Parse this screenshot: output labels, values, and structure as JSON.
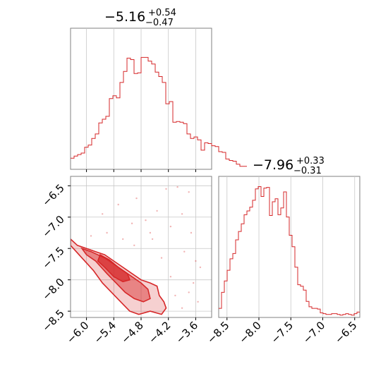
{
  "chart_data": {
    "type": "corner",
    "color": "#d62728",
    "parameters": [
      {
        "title": {
          "median": "−5.16",
          "plus": "+0.54",
          "minus": "−0.47"
        },
        "range": [
          -6.35,
          -3.25
        ],
        "ticks": [
          {
            "v": -6.0,
            "label": "−6.0"
          },
          {
            "v": -5.4,
            "label": "−5.4"
          },
          {
            "v": -4.8,
            "label": "−4.8"
          },
          {
            "v": -4.2,
            "label": "−4.2"
          },
          {
            "v": -3.6,
            "label": "−3.6"
          }
        ]
      },
      {
        "title": {
          "median": "−7.96",
          "plus": "+0.33",
          "minus": "−0.31"
        },
        "range": [
          -8.63,
          -6.42
        ],
        "ticks": [
          {
            "v": -8.5,
            "label": "−8.5"
          },
          {
            "v": -8.0,
            "label": "−8.0"
          },
          {
            "v": -7.5,
            "label": "−7.5"
          },
          {
            "v": -7.0,
            "label": "−7.0"
          },
          {
            "v": -6.5,
            "label": "−6.5"
          }
        ]
      }
    ],
    "histogram_1": {
      "x_start": -6.35,
      "bin_width": 0.0775,
      "ymax": 184,
      "counts": [
        15,
        18,
        20,
        22,
        30,
        33,
        42,
        48,
        63,
        68,
        72,
        96,
        100,
        97,
        118,
        133,
        151,
        149,
        130,
        131,
        152,
        152,
        147,
        143,
        132,
        126,
        118,
        89,
        92,
        64,
        65,
        64,
        62,
        48,
        42,
        44,
        40,
        26,
        36,
        35,
        32,
        31,
        24,
        23,
        14,
        12,
        11,
        7,
        4,
        4
      ]
    },
    "histogram_2": {
      "x_start": -8.63,
      "bin_width": 0.0442,
      "ymax": 178,
      "counts": [
        12,
        33,
        48,
        62,
        77,
        84,
        102,
        113,
        123,
        135,
        140,
        145,
        154,
        169,
        172,
        159,
        170,
        171,
        134,
        152,
        156,
        135,
        144,
        165,
        132,
        108,
        93,
        66,
        43,
        41,
        36,
        21,
        14,
        12,
        12,
        11,
        6,
        5,
        4,
        4,
        5,
        5,
        4,
        3,
        4,
        5,
        4,
        3,
        5,
        7
      ]
    },
    "density_2d": {
      "ylim": [
        -8.6,
        -6.35
      ],
      "yticks": [
        {
          "v": -6.5,
          "label": "−6.5"
        },
        {
          "v": -7.0,
          "label": "−7.0"
        },
        {
          "v": -7.5,
          "label": "−7.5"
        },
        {
          "v": -8.0,
          "label": "−8.0"
        },
        {
          "v": -8.5,
          "label": "−8.5"
        }
      ],
      "outer_contour": [
        [
          -6.35,
          -7.35
        ],
        [
          -6.2,
          -7.45
        ],
        [
          -6.0,
          -7.5
        ],
        [
          -5.8,
          -7.55
        ],
        [
          -5.6,
          -7.6
        ],
        [
          -5.4,
          -7.7
        ],
        [
          -5.2,
          -7.8
        ],
        [
          -5.0,
          -7.9
        ],
        [
          -4.8,
          -8.0
        ],
        [
          -4.6,
          -8.05
        ],
        [
          -4.45,
          -8.1
        ],
        [
          -4.4,
          -8.25
        ],
        [
          -4.3,
          -8.35
        ],
        [
          -4.25,
          -8.45
        ],
        [
          -4.35,
          -8.55
        ],
        [
          -4.6,
          -8.5
        ],
        [
          -4.85,
          -8.55
        ],
        [
          -5.05,
          -8.5
        ],
        [
          -5.25,
          -8.35
        ],
        [
          -5.45,
          -8.2
        ],
        [
          -5.65,
          -8.05
        ],
        [
          -5.85,
          -7.85
        ],
        [
          -6.1,
          -7.65
        ],
        [
          -6.35,
          -7.45
        ]
      ],
      "middle_contour": [
        [
          -6.1,
          -7.5
        ],
        [
          -5.9,
          -7.55
        ],
        [
          -5.6,
          -7.65
        ],
        [
          -5.4,
          -7.75
        ],
        [
          -5.2,
          -7.85
        ],
        [
          -5.0,
          -7.95
        ],
        [
          -4.8,
          -8.05
        ],
        [
          -4.65,
          -8.15
        ],
        [
          -4.6,
          -8.3
        ],
        [
          -4.75,
          -8.35
        ],
        [
          -4.95,
          -8.3
        ],
        [
          -5.15,
          -8.2
        ],
        [
          -5.35,
          -8.05
        ],
        [
          -5.55,
          -7.9
        ],
        [
          -5.8,
          -7.7
        ],
        [
          -6.0,
          -7.6
        ]
      ],
      "inner_contour": [
        [
          -5.7,
          -7.6
        ],
        [
          -5.5,
          -7.68
        ],
        [
          -5.3,
          -7.8
        ],
        [
          -5.1,
          -7.9
        ],
        [
          -5.05,
          -8.0
        ],
        [
          -5.2,
          -8.03
        ],
        [
          -5.4,
          -7.95
        ],
        [
          -5.6,
          -7.8
        ],
        [
          -5.75,
          -7.7
        ]
      ],
      "outliers": [
        [
          -4.0,
          -6.52
        ],
        [
          -4.25,
          -6.55
        ],
        [
          -3.75,
          -6.6
        ],
        [
          -4.9,
          -6.7
        ],
        [
          -5.3,
          -6.8
        ],
        [
          -4.45,
          -6.9
        ],
        [
          -3.9,
          -6.95
        ],
        [
          -5.65,
          -6.95
        ],
        [
          -4.7,
          -7.05
        ],
        [
          -5.0,
          -7.1
        ],
        [
          -4.15,
          -7.15
        ],
        [
          -3.7,
          -7.25
        ],
        [
          -4.55,
          -7.35
        ],
        [
          -5.9,
          -7.3
        ],
        [
          -3.85,
          -7.55
        ],
        [
          -4.35,
          -7.65
        ],
        [
          -3.5,
          -7.8
        ],
        [
          -3.65,
          -8.05
        ],
        [
          -3.55,
          -8.35
        ],
        [
          -3.9,
          -8.45
        ],
        [
          -4.05,
          -8.25
        ],
        [
          -3.75,
          -8.2
        ],
        [
          -4.15,
          -7.95
        ],
        [
          -5.55,
          -7.25
        ],
        [
          -4.95,
          -7.45
        ],
        [
          -3.6,
          -7.7
        ],
        [
          -4.6,
          -7.25
        ],
        [
          -5.2,
          -7.35
        ]
      ]
    }
  }
}
